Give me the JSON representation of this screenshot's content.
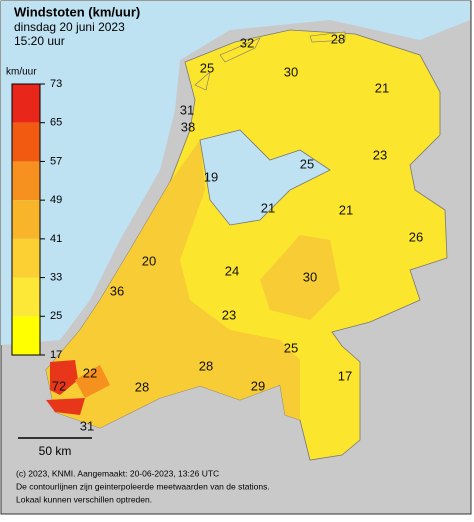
{
  "header": {
    "title": "Windstoten (km/uur)",
    "date": "dinsdag 20 juni 2023",
    "time": "15:20 uur"
  },
  "legend": {
    "unit": "km/uur",
    "ticks": [
      73,
      65,
      57,
      49,
      41,
      33,
      25,
      17
    ],
    "colors": [
      "#e8261a",
      "#f25a12",
      "#f6901e",
      "#f9b52a",
      "#fcd033",
      "#fde838",
      "#ffff00"
    ]
  },
  "stations": [
    32,
    28,
    25,
    30,
    21,
    31,
    38,
    23,
    25,
    19,
    21,
    21,
    26,
    20,
    24,
    30,
    36,
    23,
    25,
    28,
    22,
    17,
    72,
    28,
    29,
    31
  ],
  "scale": "50 km",
  "footer": [
    "(c) 2023, KNMI. Aangemaakt: 20-06-2023, 13:26 UTC",
    "De contourlijnen zijn geinterpoleerde meetwaarden van de stations.",
    "Lokaal kunnen verschillen optreden."
  ]
}
